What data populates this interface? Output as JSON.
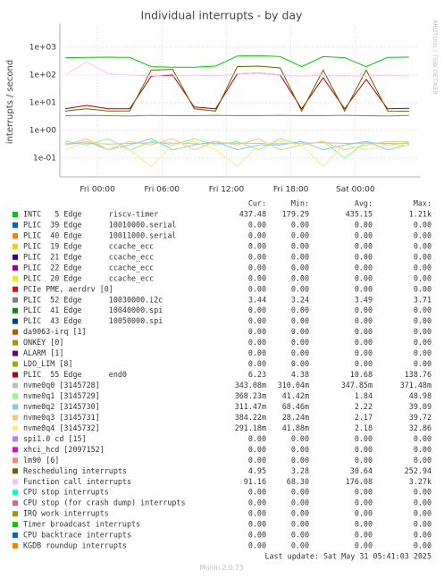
{
  "chart_data": {
    "type": "line",
    "title": "Individual interrupts - by day",
    "y_label": "interrupts / second",
    "side_label": "RRDTOOL / TOBI OETIKER",
    "log_y": true,
    "grid": true,
    "ylim": [
      0.021,
      5500
    ],
    "yticks": [
      {
        "value": 0.1,
        "label": "1e-01"
      },
      {
        "value": 1,
        "label": "1e+00"
      },
      {
        "value": 10,
        "label": "1e+01"
      },
      {
        "value": 100,
        "label": "1e+02"
      },
      {
        "value": 1000,
        "label": "1e+03"
      }
    ],
    "xlim": [
      -3.5,
      29.75
    ],
    "xticks": [
      {
        "value": 0,
        "label": "Fri 00:00"
      },
      {
        "value": 6,
        "label": "Fri 06:00"
      },
      {
        "value": 12,
        "label": "Fri 12:00"
      },
      {
        "value": 18,
        "label": "Fri 18:00"
      },
      {
        "value": 24,
        "label": "Sat 00:00"
      }
    ],
    "x": [
      -3,
      -1,
      1,
      3,
      5,
      7,
      9,
      11,
      13,
      15,
      17,
      19,
      21,
      23,
      25,
      27,
      29
    ],
    "legend_headers": [
      "Cur:",
      "Min:",
      "Avg:",
      "Max:"
    ],
    "series": [
      {
        "name": "INTC   5 Edge      riscv-timer",
        "color": "#00cc00",
        "cur": "437.48",
        "min": "179.29",
        "avg": "435.15",
        "max": "1.21k",
        "values": [
          420,
          430,
          440,
          430,
          200,
          190,
          190,
          210,
          480,
          500,
          460,
          200,
          460,
          420,
          200,
          430,
          440
        ]
      },
      {
        "name": "PLIC  39 Edge      10010000.serial",
        "color": "#0066b3",
        "cur": "0.00",
        "min": "0.00",
        "avg": "0.00",
        "max": "0.00"
      },
      {
        "name": "PLIC  40 Edge      10011000.serial",
        "color": "#ff8000",
        "cur": "0.00",
        "min": "0.00",
        "avg": "0.00",
        "max": "0.00"
      },
      {
        "name": "PLIC  19 Edge      ccache_ecc",
        "color": "#ffcc00",
        "cur": "0.00",
        "min": "0.00",
        "avg": "0.00",
        "max": "0.00"
      },
      {
        "name": "PLIC  21 Edge      ccache_ecc",
        "color": "#330099",
        "cur": "0.00",
        "min": "0.00",
        "avg": "0.00",
        "max": "0.00"
      },
      {
        "name": "PLIC  22 Edge      ccache_ecc",
        "color": "#990099",
        "cur": "0.00",
        "min": "0.00",
        "avg": "0.00",
        "max": "0.00"
      },
      {
        "name": "PLIC  20 Edge      ccache_ecc",
        "color": "#ccff00",
        "cur": "0.00",
        "min": "0.00",
        "avg": "0.00",
        "max": "0.00"
      },
      {
        "name": "PCIe PME, aerdrv [0]",
        "color": "#ff0000",
        "cur": "0.00",
        "min": "0.00",
        "avg": "0.00",
        "max": "0.00"
      },
      {
        "name": "PLIC  52 Edge      10030000.i2c",
        "color": "#808080",
        "cur": "3.44",
        "min": "3.24",
        "avg": "3.49",
        "max": "3.71",
        "values": [
          3.4,
          3.5,
          3.4,
          3.3,
          3.5,
          3.4,
          3.4,
          3.5,
          3.4,
          3.4,
          3.5,
          3.4,
          3.4,
          3.5,
          3.4,
          3.3,
          3.44
        ]
      },
      {
        "name": "PLIC  41 Edge      10040000.spi",
        "color": "#008f00",
        "cur": "0.00",
        "min": "0.00",
        "avg": "0.00",
        "max": "0.00"
      },
      {
        "name": "PLIC  43 Edge      10050000.spi",
        "color": "#00487d",
        "cur": "0.00",
        "min": "0.00",
        "avg": "0.00",
        "max": "0.00"
      },
      {
        "name": "da9063-irq [1]",
        "color": "#b35a00",
        "cur": "0.00",
        "min": "0.00",
        "avg": "0.00",
        "max": "0.00"
      },
      {
        "name": "ONKEY [0]",
        "color": "#b38f00",
        "cur": "0.00",
        "min": "0.00",
        "avg": "0.00",
        "max": "0.00"
      },
      {
        "name": "ALARM [1]",
        "color": "#6b006b",
        "cur": "0.00",
        "min": "0.00",
        "avg": "0.00",
        "max": "0.00"
      },
      {
        "name": "LDO_LIM [8]",
        "color": "#8fb300",
        "cur": "0.00",
        "min": "0.00",
        "avg": "0.00",
        "max": "0.00"
      },
      {
        "name": "PLIC  55 Edge      end0",
        "color": "#b30000",
        "cur": "6.23",
        "min": "4.38",
        "avg": "10.68",
        "max": "138.76",
        "values": [
          6,
          8,
          6,
          6,
          90,
          100,
          7,
          6,
          110,
          120,
          100,
          6,
          80,
          6,
          70,
          6,
          6.23
        ]
      },
      {
        "name": "nvme0q0 [3145728]",
        "color": "#bebebe",
        "cur": "343.08m",
        "min": "310.04m",
        "avg": "347.85m",
        "max": "371.48m",
        "values": [
          0.33,
          0.35,
          0.32,
          0.34,
          0.36,
          0.35,
          0.33,
          0.34,
          0.35,
          0.34,
          0.33,
          0.35,
          0.36,
          0.34,
          0.35,
          0.34,
          0.343
        ]
      },
      {
        "name": "nvme0q1 [3145729]",
        "color": "#80ff80",
        "cur": "368.23m",
        "min": "41.42m",
        "avg": "1.84",
        "max": "48.98",
        "values": [
          0.4,
          0.3,
          0.5,
          0.2,
          0.4,
          0.3,
          0.5,
          0.3,
          0.4,
          0.2,
          0.5,
          0.3,
          0.4,
          0.1,
          0.4,
          0.3,
          0.368
        ]
      },
      {
        "name": "nvme0q2 [3145730]",
        "color": "#80c9ff",
        "cur": "311.47m",
        "min": "68.46m",
        "avg": "2.22",
        "max": "39.09",
        "values": [
          0.3,
          0.4,
          0.2,
          0.3,
          0.5,
          0.2,
          0.3,
          0.4,
          0.2,
          0.3,
          0.3,
          0.4,
          0.2,
          0.3,
          0.4,
          0.2,
          0.311
        ]
      },
      {
        "name": "nvme0q3 [3145731]",
        "color": "#ffc080",
        "cur": "384.22m",
        "min": "28.24m",
        "avg": "2.17",
        "max": "39.72",
        "values": [
          0.3,
          0.5,
          0.2,
          0.4,
          0.3,
          0.5,
          0.2,
          0.4,
          0.3,
          0.5,
          0.2,
          0.3,
          0.4,
          0.2,
          0.3,
          0.4,
          0.384
        ]
      },
      {
        "name": "nvme0q4 [3145732]",
        "color": "#ffe680",
        "cur": "291.18m",
        "min": "41.88m",
        "avg": "2.18",
        "max": "32.86",
        "values": [
          0.2,
          0.4,
          0.3,
          0.2,
          0.05,
          0.3,
          0.4,
          0.2,
          0.05,
          0.3,
          0.4,
          0.3,
          0.05,
          0.3,
          0.2,
          0.3,
          0.291
        ]
      },
      {
        "name": "spi1.0 cd [15]",
        "color": "#aa80ff",
        "cur": "0.00",
        "min": "0.00",
        "avg": "0.00",
        "max": "0.00"
      },
      {
        "name": "xhci_hcd [2097152]",
        "color": "#ee00cc",
        "cur": "0.00",
        "min": "0.00",
        "avg": "0.00",
        "max": "0.00"
      },
      {
        "name": "lm90 [6]",
        "color": "#ff8080",
        "cur": "0.00",
        "min": "0.00",
        "avg": "0.00",
        "max": "0.00"
      },
      {
        "name": "Rescheduling interrupts",
        "color": "#666600",
        "cur": "4.95",
        "min": "3.28",
        "avg": "30.64",
        "max": "252.94",
        "values": [
          5,
          6,
          5,
          5,
          150,
          160,
          6,
          5,
          200,
          210,
          180,
          5,
          150,
          5,
          150,
          5,
          4.95
        ]
      },
      {
        "name": "Function call interrupts",
        "color": "#ffbfff",
        "cur": "91.16",
        "min": "68.30",
        "avg": "176.08",
        "max": "3.27k",
        "values": [
          100,
          300,
          110,
          100,
          95,
          90,
          100,
          95,
          110,
          120,
          100,
          90,
          100,
          95,
          90,
          100,
          91.16
        ]
      },
      {
        "name": "CPU stop interrupts",
        "color": "#00ffcc",
        "cur": "0.00",
        "min": "0.00",
        "avg": "0.00",
        "max": "0.00"
      },
      {
        "name": "CPU stop (for crash dump) interrupts",
        "color": "#cc6699",
        "cur": "0.00",
        "min": "0.00",
        "avg": "0.00",
        "max": "0.00"
      },
      {
        "name": "IRQ work interrupts",
        "color": "#999900",
        "cur": "0.00",
        "min": "0.00",
        "avg": "0.00",
        "max": "0.00"
      },
      {
        "name": "Timer broadcast interrupts",
        "color": "#00cc00",
        "cur": "0.00",
        "min": "0.00",
        "avg": "0.00",
        "max": "0.00"
      },
      {
        "name": "CPU backtrace interrupts",
        "color": "#0066b3",
        "cur": "0.00",
        "min": "0.00",
        "avg": "0.00",
        "max": "0.00"
      },
      {
        "name": "KGDB roundup interrupts",
        "color": "#ff8000",
        "cur": "0.00",
        "min": "0.00",
        "avg": "0.00",
        "max": "0.00"
      }
    ],
    "last_update": "Last update: Sat May 31 05:41:03 2025",
    "footer": "Munin 2.0.73"
  }
}
